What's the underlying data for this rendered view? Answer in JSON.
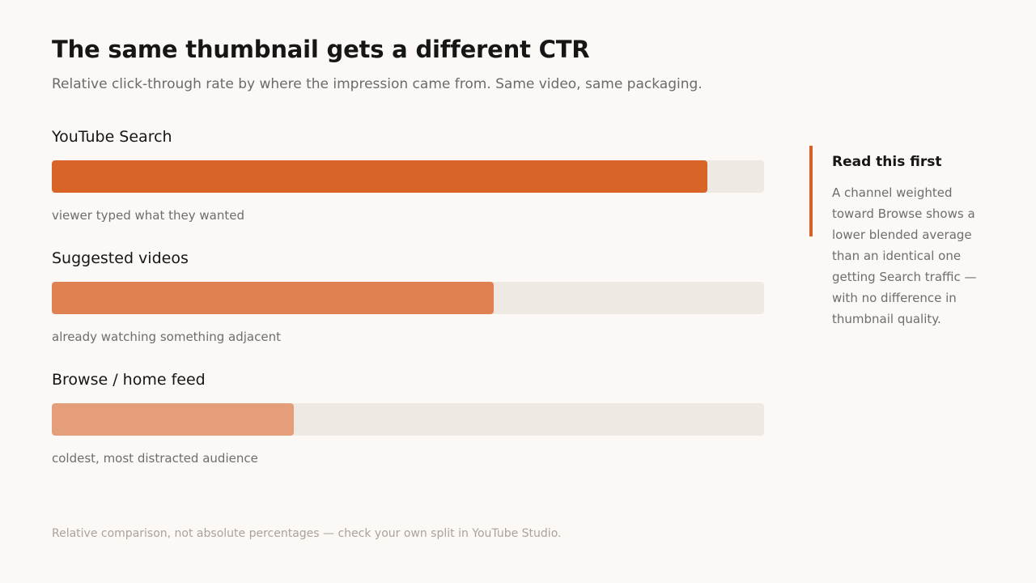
{
  "header": {
    "title": "The same thumbnail gets a different CTR",
    "subtitle": "Relative click-through rate by where the impression came from. Same video, same packaging."
  },
  "chart_data": {
    "type": "bar",
    "orientation": "horizontal",
    "categories": [
      "YouTube Search",
      "Suggested videos",
      "Browse / home feed"
    ],
    "values": [
      0.92,
      0.62,
      0.34
    ],
    "annotations": [
      "viewer typed what they wanted",
      "already watching something adjacent",
      "coldest, most distracted audience"
    ],
    "colors": [
      "#d96427",
      "#df8150",
      "#e49e7a"
    ],
    "track_color": "#efe9e3",
    "xlim": [
      0,
      1
    ],
    "grid": false
  },
  "callout": {
    "title": "Read this first",
    "body": "A channel weighted toward Browse shows a lower blended average than an identical one getting Search traffic — with no difference in thumbnail quality.",
    "accent": "#d6622a"
  },
  "footer": {
    "note": "Relative comparison, not absolute percentages — check your own split in YouTube Studio."
  }
}
